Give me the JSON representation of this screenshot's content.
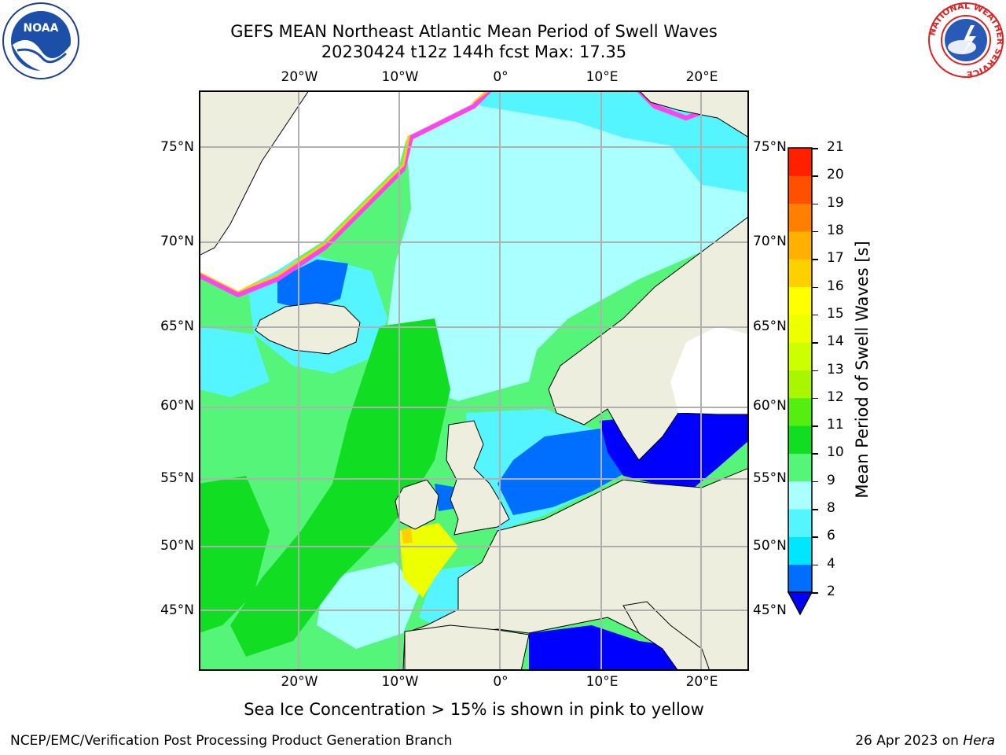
{
  "title": {
    "line1": "GEFS MEAN Northeast Atlantic Mean Period of Swell Waves",
    "line2": "20230424 t12z 144h fcst   Max: 17.35"
  },
  "map": {
    "lon_labels": [
      "20°W",
      "10°W",
      "0°",
      "10°E",
      "20°E"
    ],
    "lat_labels": [
      "75°N",
      "70°N",
      "65°N",
      "60°N",
      "55°N",
      "50°N",
      "45°N"
    ],
    "land_color": "#eeeedf",
    "ice_mask_color": "#ffffff"
  },
  "colorbar": {
    "label": "Mean Period of Swell Waves [s]",
    "ticks": [
      "2",
      "4",
      "6",
      "8",
      "9",
      "10",
      "11",
      "12",
      "13",
      "14",
      "15",
      "16",
      "17",
      "18",
      "19",
      "20",
      "21"
    ],
    "colors": [
      "#0000ff",
      "#006eff",
      "#00e6ff",
      "#55f5ff",
      "#aaffff",
      "#55f57a",
      "#11dd22",
      "#55ee11",
      "#aaf500",
      "#ccff00",
      "#eeff00",
      "#ffff00",
      "#ffd000",
      "#ffb000",
      "#ff8000",
      "#ff5000",
      "#ff2000",
      "#ff0000"
    ]
  },
  "sea_ice_note": "Sea Ice Concentration > 15% is shown in pink to yellow",
  "footer": {
    "left": "NCEP/EMC/Verification Post Processing Product Generation Branch",
    "date": "26 Apr 2023 on ",
    "machine": "Hera"
  },
  "logos": {
    "noaa_text": "NOAA",
    "nws_text": "NATIONAL WEATHER SERVICE"
  }
}
